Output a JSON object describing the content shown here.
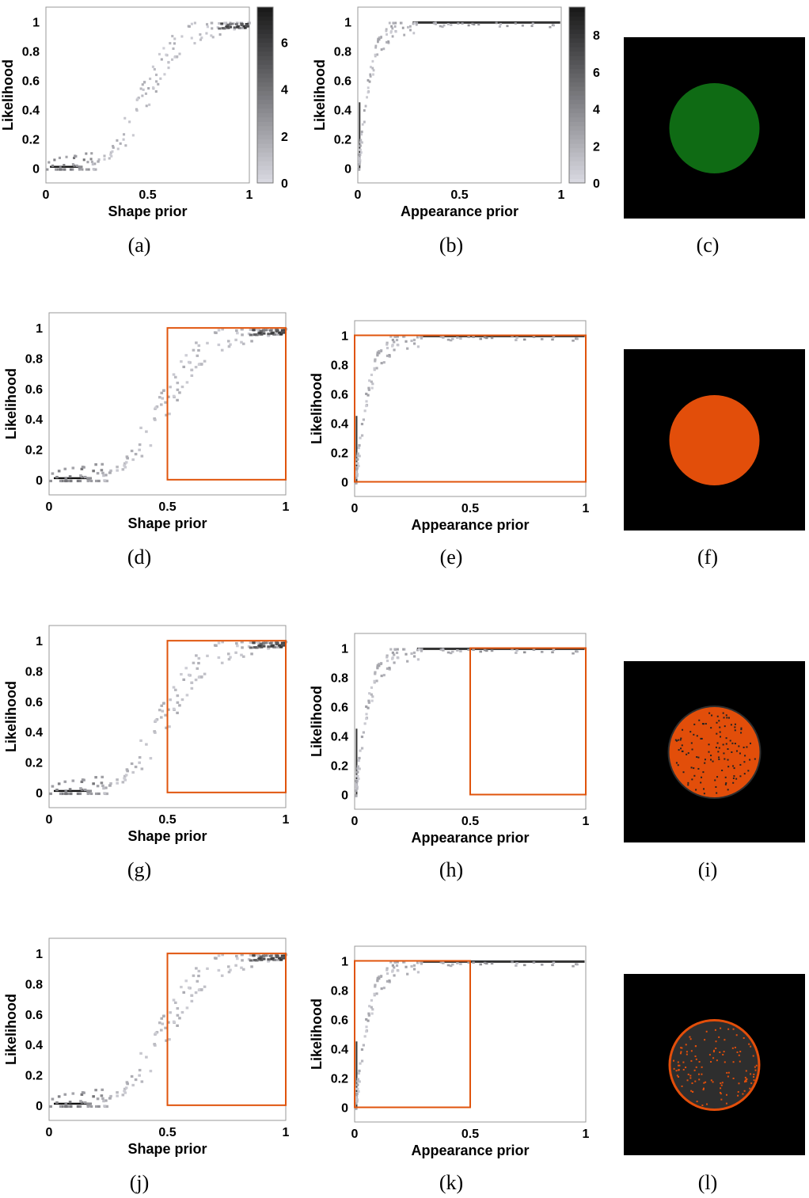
{
  "figure": {
    "captions": [
      "(a)",
      "(b)",
      "(c)",
      "(d)",
      "(e)",
      "(f)",
      "(g)",
      "(h)",
      "(i)",
      "(j)",
      "(k)",
      "(l)"
    ]
  },
  "colors": {
    "highlight_box": "#e0540c",
    "circle_green": "#0f6b14",
    "circle_orange": "#e24e0a",
    "circle_dark": "#2e2e2e",
    "background_black": "#000000",
    "density_dark": "#1a1a1a",
    "density_light": "#d8d8e0"
  },
  "chart_data": [
    {
      "type": "heatmap",
      "id": "a",
      "xlabel": "Shape prior",
      "ylabel": "Likelihood",
      "xlim": [
        0,
        1
      ],
      "ylim": [
        -0.1,
        1.1
      ],
      "xticks": [
        0,
        0.5,
        1
      ],
      "xtick_labels": [
        "0",
        "0.5",
        "1"
      ],
      "yticks": [
        0,
        0.2,
        0.4,
        0.6,
        0.8,
        1
      ],
      "ytick_labels": [
        "0",
        "0.2",
        "0.4",
        "0.6",
        "0.8",
        "1"
      ],
      "relation": "sigmoid",
      "colorbar": {
        "ticks": [
          0,
          2,
          4,
          6
        ],
        "labels": [
          "0",
          "2",
          "4",
          "6"
        ],
        "max": 7.5
      },
      "highlight_box": null
    },
    {
      "type": "heatmap",
      "id": "b",
      "xlabel": "Appearance prior",
      "ylabel": "Likelihood",
      "xlim": [
        0,
        1
      ],
      "ylim": [
        -0.1,
        1.1
      ],
      "xticks": [
        0,
        0.5,
        1
      ],
      "xtick_labels": [
        "0",
        "0.5",
        "1"
      ],
      "yticks": [
        0,
        0.2,
        0.4,
        0.6,
        0.8,
        1
      ],
      "ytick_labels": [
        "0",
        "0.2",
        "0.4",
        "0.6",
        "0.8",
        "1"
      ],
      "relation": "saturating",
      "colorbar": {
        "ticks": [
          0,
          2,
          4,
          6,
          8
        ],
        "labels": [
          "0",
          "2",
          "4",
          "6",
          "8"
        ],
        "max": 9.5
      },
      "highlight_box": null
    },
    {
      "type": "heatmap",
      "id": "d",
      "xlabel": "Shape prior",
      "ylabel": "Likelihood",
      "xlim": [
        0,
        1
      ],
      "ylim": [
        -0.1,
        1.1
      ],
      "xticks": [
        0,
        0.5,
        1
      ],
      "xtick_labels": [
        "0",
        "0.5",
        "1"
      ],
      "yticks": [
        0,
        0.2,
        0.4,
        0.6,
        0.8,
        1
      ],
      "ytick_labels": [
        "0",
        "0.2",
        "0.4",
        "0.6",
        "0.8",
        "1"
      ],
      "relation": "sigmoid",
      "colorbar": null,
      "highlight_box": {
        "x": [
          0.5,
          1
        ],
        "y": [
          0,
          1
        ]
      }
    },
    {
      "type": "heatmap",
      "id": "e",
      "xlabel": "Appearance prior",
      "ylabel": "Likelihood",
      "xlim": [
        0,
        1
      ],
      "ylim": [
        -0.1,
        1.1
      ],
      "xticks": [
        0,
        0.5,
        1
      ],
      "xtick_labels": [
        "0",
        "0.5",
        "1"
      ],
      "yticks": [
        0,
        0.2,
        0.4,
        0.6,
        0.8,
        1
      ],
      "ytick_labels": [
        "0",
        "0.2",
        "0.4",
        "0.6",
        "0.8",
        "1"
      ],
      "relation": "saturating",
      "colorbar": null,
      "highlight_box": {
        "x": [
          0,
          1
        ],
        "y": [
          0,
          1
        ]
      }
    },
    {
      "type": "heatmap",
      "id": "g",
      "xlabel": "Shape prior",
      "ylabel": "Likelihood",
      "xlim": [
        0,
        1
      ],
      "ylim": [
        -0.1,
        1.1
      ],
      "xticks": [
        0,
        0.5,
        1
      ],
      "xtick_labels": [
        "0",
        "0.5",
        "1"
      ],
      "yticks": [
        0,
        0.2,
        0.4,
        0.6,
        0.8,
        1
      ],
      "ytick_labels": [
        "0",
        "0.2",
        "0.4",
        "0.6",
        "0.8",
        "1"
      ],
      "relation": "sigmoid",
      "colorbar": null,
      "highlight_box": {
        "x": [
          0.5,
          1
        ],
        "y": [
          0,
          1
        ]
      }
    },
    {
      "type": "heatmap",
      "id": "h",
      "xlabel": "Appearance prior",
      "ylabel": "Likelihood",
      "xlim": [
        0,
        1
      ],
      "ylim": [
        -0.1,
        1.1
      ],
      "xticks": [
        0,
        0.5,
        1
      ],
      "xtick_labels": [
        "0",
        "0.5",
        "1"
      ],
      "yticks": [
        0,
        0.2,
        0.4,
        0.6,
        0.8,
        1
      ],
      "ytick_labels": [
        "0",
        "0.2",
        "0.4",
        "0.6",
        "0.8",
        "1"
      ],
      "relation": "saturating",
      "colorbar": null,
      "highlight_box": {
        "x": [
          0.5,
          1
        ],
        "y": [
          0,
          1
        ]
      }
    },
    {
      "type": "heatmap",
      "id": "j",
      "xlabel": "Shape prior",
      "ylabel": "Likelihood",
      "xlim": [
        0,
        1
      ],
      "ylim": [
        -0.1,
        1.1
      ],
      "xticks": [
        0,
        0.5,
        1
      ],
      "xtick_labels": [
        "0",
        "0.5",
        "1"
      ],
      "yticks": [
        0,
        0.2,
        0.4,
        0.6,
        0.8,
        1
      ],
      "ytick_labels": [
        "0",
        "0.2",
        "0.4",
        "0.6",
        "0.8",
        "1"
      ],
      "relation": "sigmoid",
      "colorbar": null,
      "highlight_box": {
        "x": [
          0.5,
          1
        ],
        "y": [
          0,
          1
        ]
      }
    },
    {
      "type": "heatmap",
      "id": "k",
      "xlabel": "Appearance prior",
      "ylabel": "Likelihood",
      "xlim": [
        0,
        1
      ],
      "ylim": [
        -0.1,
        1.1
      ],
      "xticks": [
        0,
        0.5,
        1
      ],
      "xtick_labels": [
        "0",
        "0.5",
        "1"
      ],
      "yticks": [
        0,
        0.2,
        0.4,
        0.6,
        0.8,
        1
      ],
      "ytick_labels": [
        "0",
        "0.2",
        "0.4",
        "0.6",
        "0.8",
        "1"
      ],
      "relation": "saturating",
      "colorbar": null,
      "highlight_box": {
        "x": [
          0,
          0.5
        ],
        "y": [
          0,
          1
        ]
      }
    }
  ],
  "segmentation_images": [
    {
      "id": "c",
      "fill": "green",
      "noise": "none"
    },
    {
      "id": "f",
      "fill": "orange",
      "noise": "none"
    },
    {
      "id": "i",
      "fill": "orange",
      "noise": "dark-speckles"
    },
    {
      "id": "l",
      "fill": "dark",
      "noise": "orange-speckles-and-rim"
    }
  ]
}
